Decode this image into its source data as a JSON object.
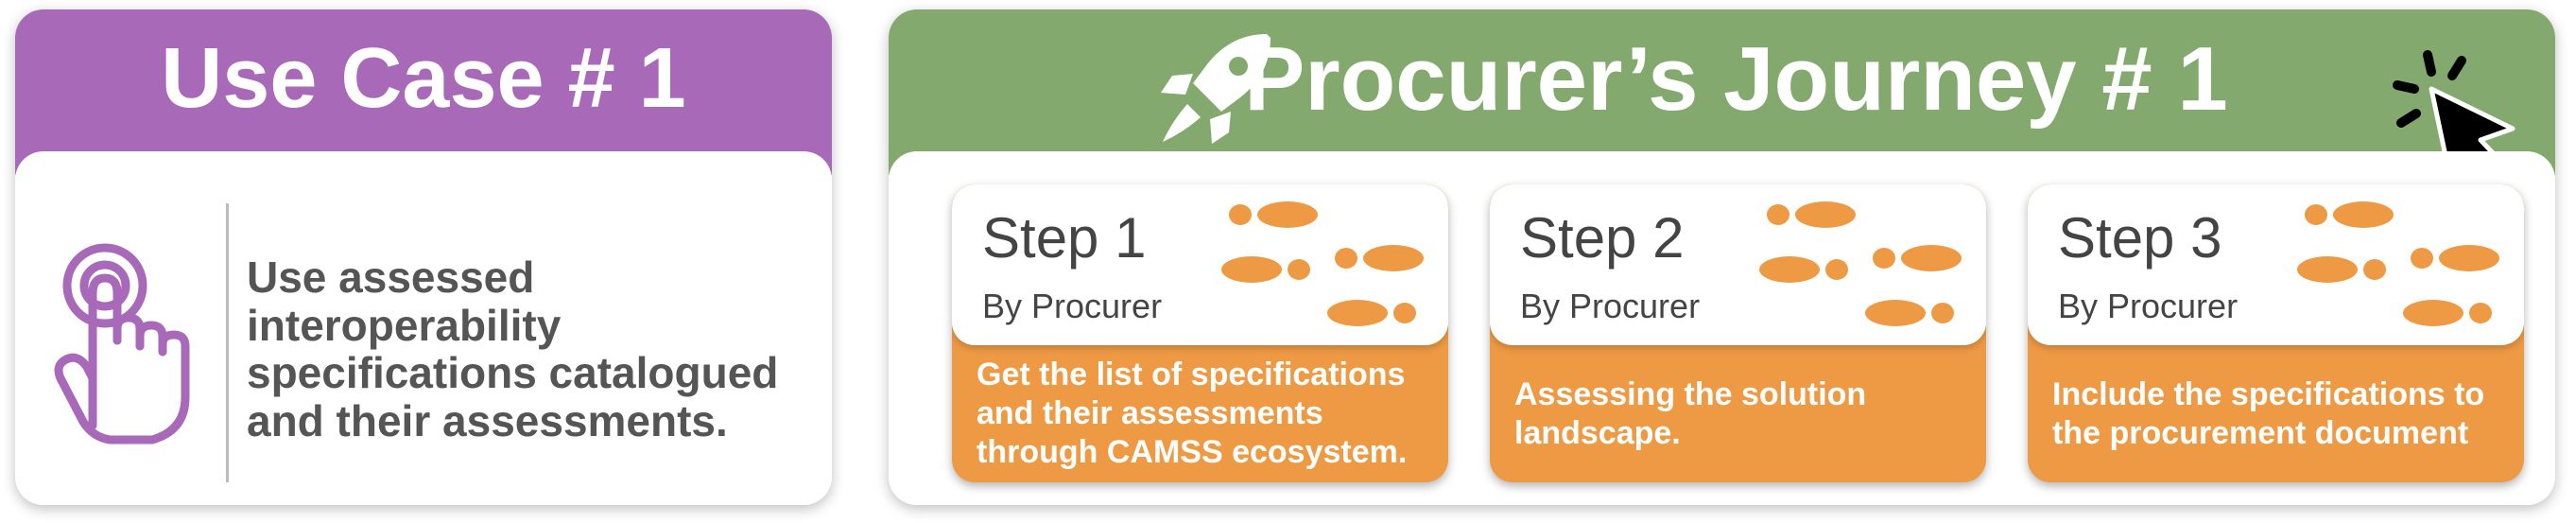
{
  "use_case": {
    "title": "Use Case # 1",
    "description": "Use assessed interoperability specifications catalogued and their assessments.",
    "icon": "tap-hand-icon",
    "color": "#a769b8"
  },
  "journey": {
    "title": "Procurer’s Journey # 1",
    "color": "#84a96f",
    "icons": [
      "rocket-icon",
      "click-cursor-icon",
      "footsteps-icon"
    ],
    "steps": [
      {
        "title": "Step 1",
        "by": "By Procurer",
        "text": "Get the list of specifications and their assessments through CAMSS ecosystem."
      },
      {
        "title": "Step 2",
        "by": "By Procurer",
        "text": "Assessing the solution landscape."
      },
      {
        "title": "Step 3",
        "by": "By Procurer",
        "text": "Include the specifications to the procurement document"
      }
    ],
    "step_color": "#ee9a45"
  }
}
